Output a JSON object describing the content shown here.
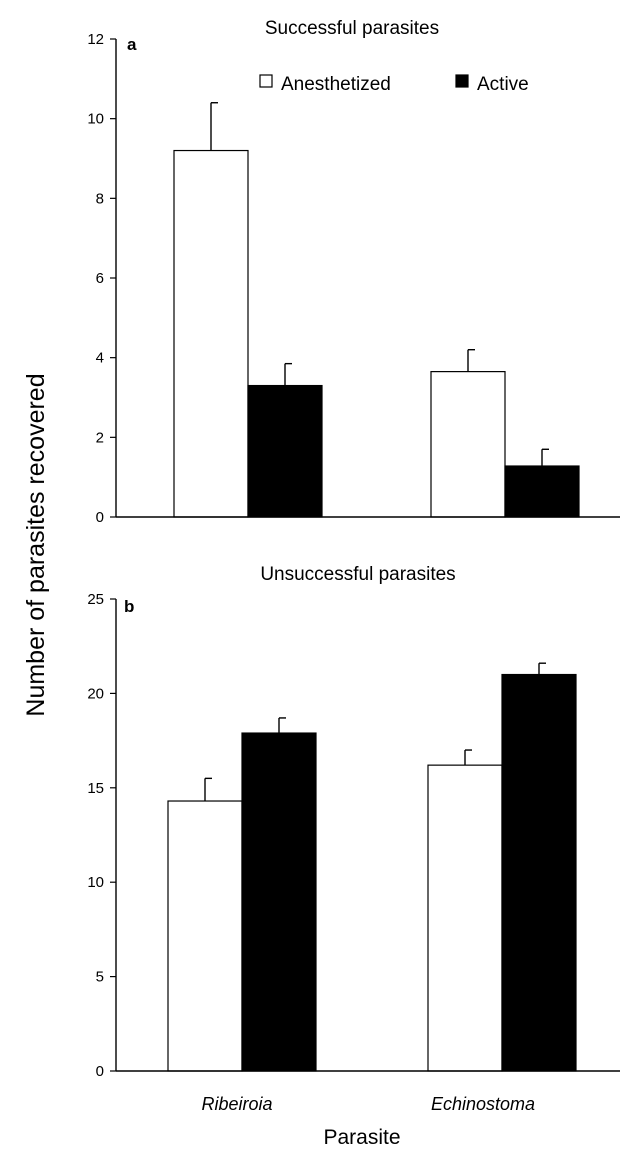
{
  "chart_data": {
    "ylabel": "Number of parasites recovered",
    "xlabel": "Parasite",
    "categories": [
      "Ribeiroia",
      "Echinostoma"
    ],
    "legend": {
      "placement": "top-right",
      "items": [
        {
          "name": "Anesthetized",
          "color": "#ffffff"
        },
        {
          "name": "Active",
          "color": "#000000"
        }
      ]
    },
    "panels": [
      {
        "type": "bar",
        "letter": "a",
        "title": "Successful parasites",
        "ylim": [
          0,
          12
        ],
        "yticks": [
          0,
          2,
          4,
          6,
          8,
          10,
          12
        ],
        "series": [
          {
            "name": "Anesthetized",
            "color": "#ffffff",
            "values": [
              9.2,
              3.65
            ],
            "errors": [
              1.2,
              0.55
            ]
          },
          {
            "name": "Active",
            "color": "#000000",
            "values": [
              3.3,
              1.28
            ],
            "errors": [
              0.55,
              0.42
            ]
          }
        ]
      },
      {
        "type": "bar",
        "letter": "b",
        "title": "Unsuccessful parasites",
        "ylim": [
          0,
          25
        ],
        "yticks": [
          0,
          5,
          10,
          15,
          20,
          25
        ],
        "series": [
          {
            "name": "Anesthetized",
            "color": "#ffffff",
            "values": [
              14.3,
              16.2
            ],
            "errors": [
              1.2,
              0.8
            ]
          },
          {
            "name": "Active",
            "color": "#000000",
            "values": [
              17.9,
              21.0
            ],
            "errors": [
              0.8,
              0.6
            ]
          }
        ]
      }
    ]
  }
}
